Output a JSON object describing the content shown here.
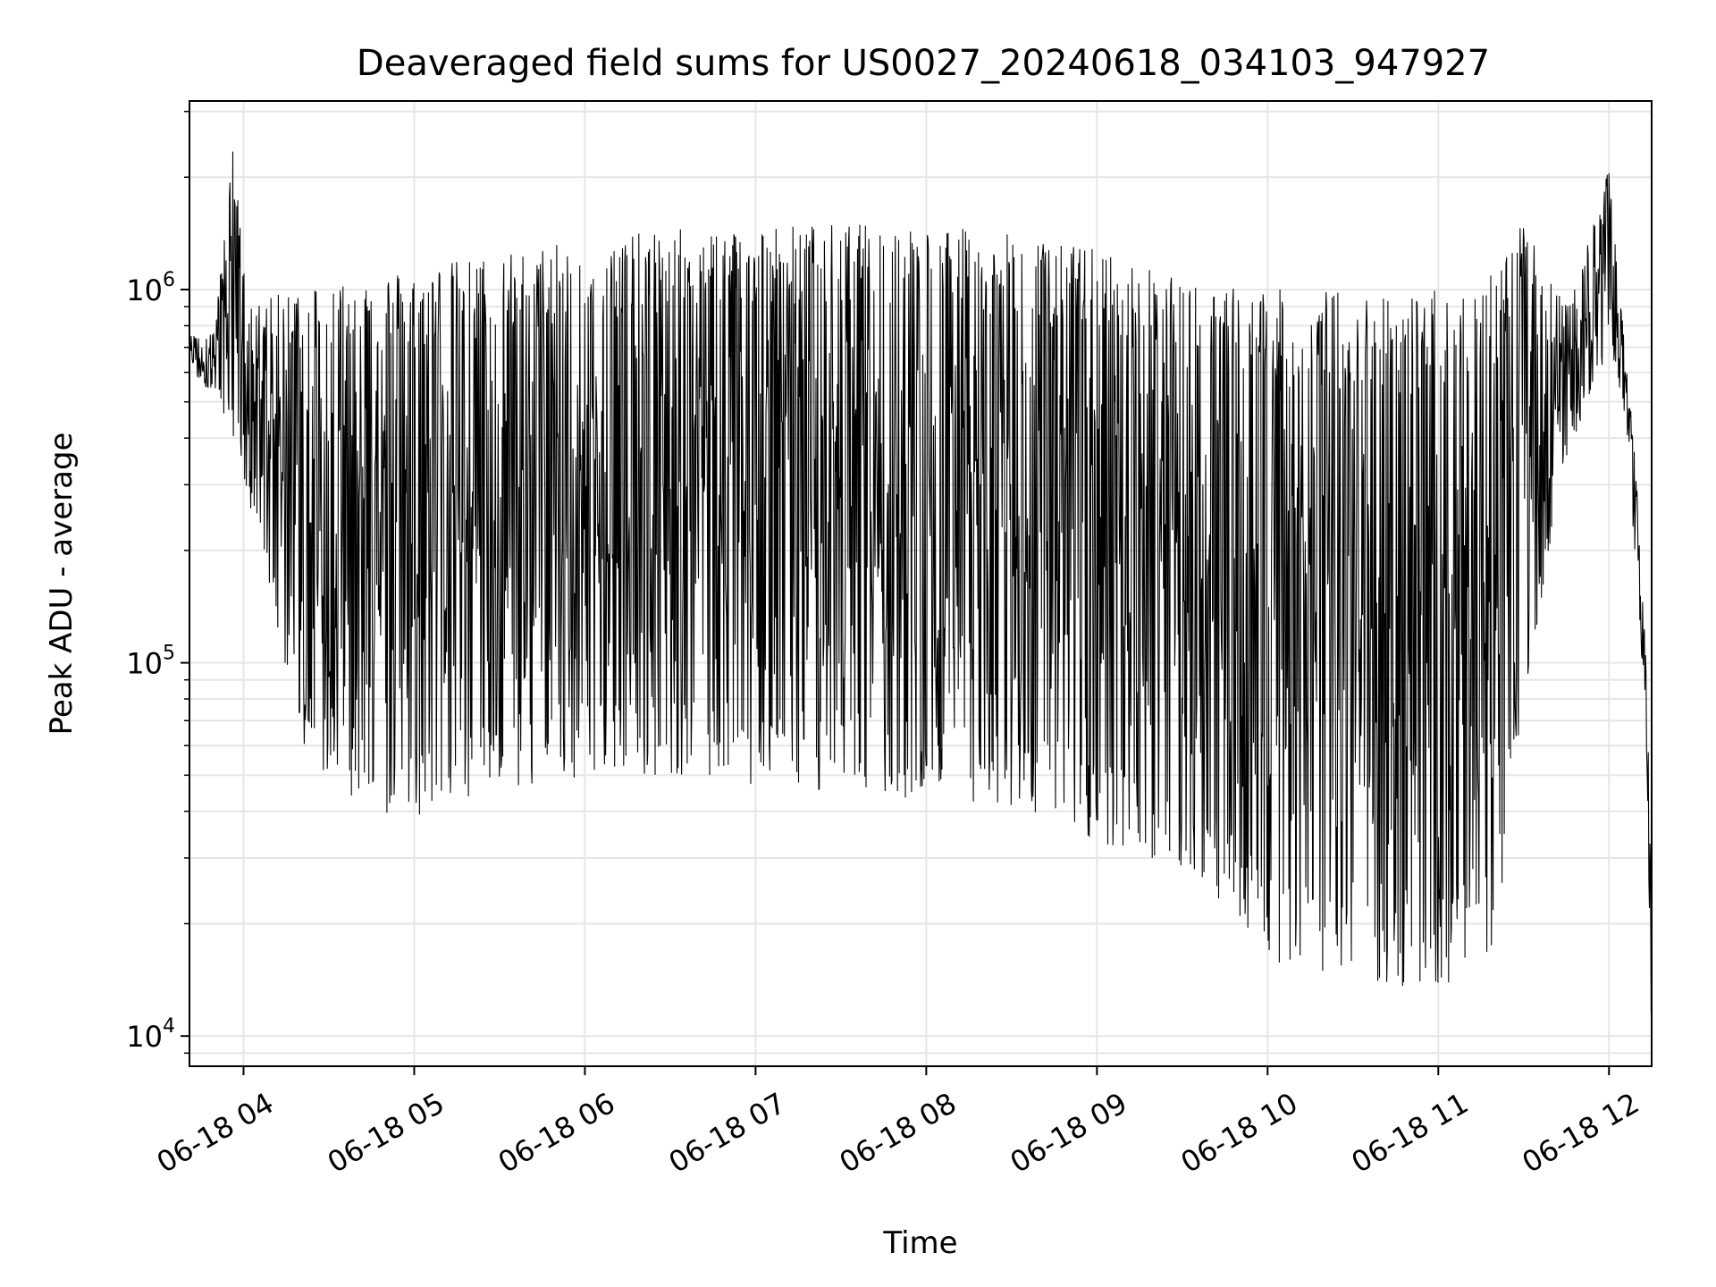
{
  "chart_data": {
    "type": "line",
    "title": "Deaveraged field sums for US0027_20240618_034103_947927",
    "xlabel": "Time",
    "ylabel": "Peak ADU - average",
    "xscale": "time",
    "yscale": "log",
    "grid": true,
    "legend": "none",
    "line_color": "#000000",
    "xlim": [
      "2024-06-18 03:41",
      "2024-06-18 12:15"
    ],
    "ylim": [
      8300,
      3200000
    ],
    "x_ticks": [
      {
        "t": "2024-06-18 04:00",
        "label": "06-18 04"
      },
      {
        "t": "2024-06-18 05:00",
        "label": "06-18 05"
      },
      {
        "t": "2024-06-18 06:00",
        "label": "06-18 06"
      },
      {
        "t": "2024-06-18 07:00",
        "label": "06-18 07"
      },
      {
        "t": "2024-06-18 08:00",
        "label": "06-18 08"
      },
      {
        "t": "2024-06-18 09:00",
        "label": "06-18 09"
      },
      {
        "t": "2024-06-18 10:00",
        "label": "06-18 10"
      },
      {
        "t": "2024-06-18 11:00",
        "label": "06-18 11"
      },
      {
        "t": "2024-06-18 12:00",
        "label": "06-18 12"
      }
    ],
    "y_ticks": [
      {
        "value": 10000,
        "base": "10",
        "exp": "4"
      },
      {
        "value": 100000,
        "base": "10",
        "exp": "5"
      },
      {
        "value": 1000000,
        "base": "10",
        "exp": "6"
      }
    ],
    "series": [
      {
        "note": "approximate envelope of the dense oscillating trace (min / max at time)",
        "points": [
          {
            "t": "2024-06-18 03:41",
            "min": 600000,
            "max": 750000
          },
          {
            "t": "2024-06-18 03:50",
            "min": 520000,
            "max": 780000
          },
          {
            "t": "2024-06-18 03:56",
            "min": 420000,
            "max": 2500000
          },
          {
            "t": "2024-06-18 04:02",
            "min": 250000,
            "max": 900000
          },
          {
            "t": "2024-06-18 04:10",
            "min": 150000,
            "max": 950000
          },
          {
            "t": "2024-06-18 04:20",
            "min": 60000,
            "max": 1050000
          },
          {
            "t": "2024-06-18 04:40",
            "min": 40000,
            "max": 1100000
          },
          {
            "t": "2024-06-18 05:00",
            "min": 38000,
            "max": 1150000
          },
          {
            "t": "2024-06-18 05:30",
            "min": 45000,
            "max": 1250000
          },
          {
            "t": "2024-06-18 06:00",
            "min": 50000,
            "max": 1350000
          },
          {
            "t": "2024-06-18 06:30",
            "min": 50000,
            "max": 1450000
          },
          {
            "t": "2024-06-18 07:00",
            "min": 45000,
            "max": 1500000
          },
          {
            "t": "2024-06-18 07:30",
            "min": 45000,
            "max": 1500000
          },
          {
            "t": "2024-06-18 08:00",
            "min": 40000,
            "max": 1500000
          },
          {
            "t": "2024-06-18 08:30",
            "min": 40000,
            "max": 1400000
          },
          {
            "t": "2024-06-18 09:00",
            "min": 33000,
            "max": 1300000
          },
          {
            "t": "2024-06-18 09:30",
            "min": 27000,
            "max": 1050000
          },
          {
            "t": "2024-06-18 10:00",
            "min": 16000,
            "max": 1000000
          },
          {
            "t": "2024-06-18 10:30",
            "min": 14000,
            "max": 1000000
          },
          {
            "t": "2024-06-18 11:00",
            "min": 13000,
            "max": 1000000
          },
          {
            "t": "2024-06-18 11:20",
            "min": 17000,
            "max": 1200000
          },
          {
            "t": "2024-06-18 11:30",
            "min": 80000,
            "max": 1500000
          },
          {
            "t": "2024-06-18 11:45",
            "min": 350000,
            "max": 900000
          },
          {
            "t": "2024-06-18 12:00",
            "min": 700000,
            "max": 2100000
          },
          {
            "t": "2024-06-18 12:05",
            "min": 500000,
            "max": 800000
          },
          {
            "t": "2024-06-18 12:10",
            "min": 150000,
            "max": 300000
          },
          {
            "t": "2024-06-18 12:13",
            "min": 70000,
            "max": 100000
          },
          {
            "t": "2024-06-18 12:15",
            "min": 9000,
            "max": 28000
          }
        ]
      }
    ]
  }
}
